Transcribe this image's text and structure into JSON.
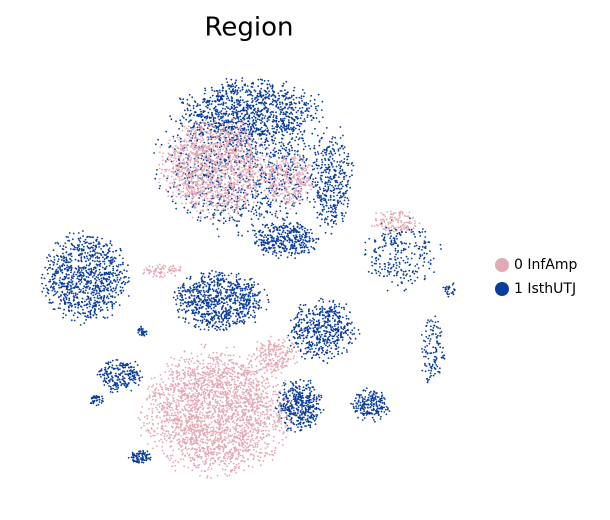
{
  "chart_data": {
    "type": "scatter",
    "title": "Region",
    "legend": "right",
    "series": [
      {
        "name": "0 InfAmp",
        "color": "#e3aab5"
      },
      {
        "name": "1 IsthUTJ",
        "color": "#0a3c9c"
      }
    ]
  }
}
